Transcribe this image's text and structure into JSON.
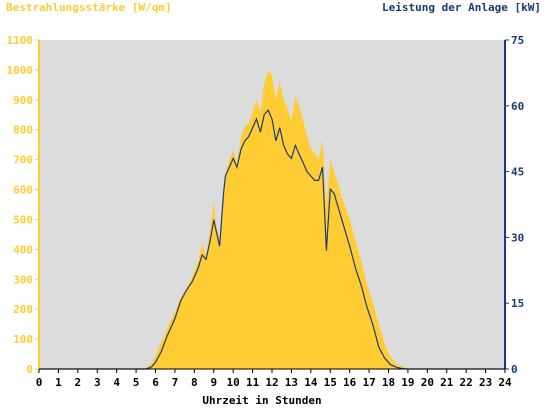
{
  "chart_data": {
    "type": "area",
    "xlabel": "Uhrzeit in Stunden",
    "ylabel_left": "Bestrahlungsstärke [W/qm]",
    "ylabel_right": "Leistung der Anlage [kW]",
    "xlim": [
      0,
      24
    ],
    "ylim_left": [
      0,
      1100
    ],
    "ylim_right": [
      0,
      75
    ],
    "x_ticks": [
      "0",
      "1",
      "2",
      "3",
      "4",
      "5",
      "6",
      "7",
      "8",
      "9",
      "10",
      "11",
      "12",
      "13",
      "14",
      "15",
      "16",
      "17",
      "18",
      "19",
      "20",
      "21",
      "22",
      "23",
      "24"
    ],
    "y_ticks_left": [
      "0",
      "100",
      "200",
      "300",
      "400",
      "500",
      "600",
      "700",
      "800",
      "900",
      "1000",
      "1100"
    ],
    "y_ticks_right": [
      "0",
      "15",
      "30",
      "45",
      "60",
      "75"
    ],
    "grid": false,
    "series": [
      {
        "axis": "left",
        "kind": "area",
        "color": "#ffcc33",
        "x": [
          0,
          5.4,
          5.6,
          5.8,
          6.0,
          6.3,
          6.6,
          7.0,
          7.3,
          7.6,
          7.9,
          8.2,
          8.4,
          8.6,
          8.8,
          9.0,
          9.1,
          9.3,
          9.5,
          9.6,
          9.8,
          10.0,
          10.2,
          10.4,
          10.6,
          10.8,
          11.0,
          11.2,
          11.4,
          11.6,
          11.8,
          12.0,
          12.2,
          12.4,
          12.6,
          12.8,
          13.0,
          13.2,
          13.4,
          13.6,
          13.8,
          14.0,
          14.2,
          14.4,
          14.6,
          14.8,
          15.0,
          15.2,
          15.4,
          15.6,
          15.8,
          16.0,
          16.3,
          16.6,
          16.9,
          17.2,
          17.5,
          17.8,
          18.1,
          18.4,
          18.7,
          19.0,
          19.3,
          24
        ],
        "y": [
          0,
          0,
          8,
          20,
          45,
          90,
          135,
          190,
          240,
          270,
          310,
          360,
          420,
          380,
          460,
          560,
          500,
          430,
          600,
          650,
          700,
          730,
          690,
          770,
          810,
          820,
          860,
          900,
          860,
          950,
          1000,
          980,
          900,
          960,
          900,
          870,
          830,
          910,
          880,
          830,
          780,
          740,
          720,
          700,
          770,
          540,
          700,
          660,
          620,
          570,
          540,
          500,
          430,
          360,
          280,
          220,
          150,
          85,
          40,
          18,
          8,
          3,
          0,
          0
        ]
      },
      {
        "axis": "right",
        "kind": "line",
        "color": "#1a3a7a",
        "x": [
          0,
          5.5,
          5.8,
          6.0,
          6.3,
          6.6,
          7.0,
          7.3,
          7.6,
          7.9,
          8.2,
          8.4,
          8.6,
          8.8,
          9.0,
          9.1,
          9.3,
          9.5,
          9.6,
          9.8,
          10.0,
          10.2,
          10.4,
          10.6,
          10.8,
          11.0,
          11.2,
          11.4,
          11.6,
          11.8,
          12.0,
          12.2,
          12.4,
          12.6,
          12.8,
          13.0,
          13.2,
          13.4,
          13.6,
          13.8,
          14.0,
          14.2,
          14.4,
          14.6,
          14.8,
          15.0,
          15.2,
          15.4,
          15.6,
          15.8,
          16.0,
          16.3,
          16.6,
          16.9,
          17.2,
          17.5,
          17.8,
          18.1,
          18.4,
          18.7,
          19.0,
          24
        ],
        "y": [
          0,
          0,
          0.5,
          1.5,
          4,
          7.5,
          11.5,
          15.5,
          18,
          20,
          23,
          26,
          25,
          29,
          34,
          32,
          28,
          40,
          44,
          46,
          48,
          46,
          50,
          52,
          53,
          55,
          57,
          54,
          58,
          59,
          57,
          52,
          55,
          51,
          49,
          48,
          51,
          49,
          47,
          45,
          44,
          43,
          43,
          46,
          27,
          41,
          40,
          37,
          34,
          31,
          28,
          23,
          19,
          14,
          10,
          5,
          2.5,
          1,
          0.4,
          0.1,
          0,
          0
        ]
      }
    ]
  }
}
